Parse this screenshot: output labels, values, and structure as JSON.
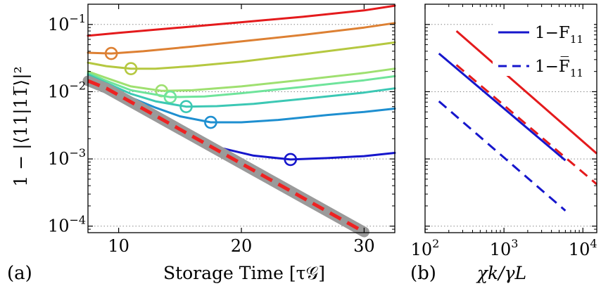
{
  "figure": {
    "panel_a_label": "(a)",
    "panel_b_label": "(b)",
    "y_axis_label": "1 − |⟨11|11̅⟩|²",
    "x_axis_label_a": "Storage Time [τ𝒢]",
    "x_axis_label_b": "χk/γL"
  },
  "chart_data": [
    {
      "type": "line",
      "panel": "(a)",
      "xlabel": "Storage Time [τ𝒢]",
      "ylabel": "1 − |⟨11|11̅⟩|²",
      "yscale": "log",
      "xlim": [
        7.5,
        32.5
      ],
      "ylim": [
        8e-05,
        0.2
      ],
      "xticks": [
        10,
        20,
        30
      ],
      "xtick_labels": [
        "10",
        "20",
        "30"
      ],
      "yticks": [
        0.0001,
        0.001,
        0.01,
        0.1
      ],
      "ytick_labels": [
        "10−4",
        "10−3",
        "10−2",
        "10−1"
      ],
      "grid": "horizontal dotted",
      "series": [
        {
          "color": "#e41a1c",
          "markers": [],
          "x": [
            7.5,
            10,
            15,
            20,
            25,
            30,
            32.5
          ],
          "y": [
            0.068,
            0.075,
            0.09,
            0.108,
            0.13,
            0.162,
            0.19
          ]
        },
        {
          "color": "#dd8033",
          "markers": [
            {
              "x": 9.4,
              "y": 0.037
            }
          ],
          "x": [
            7.5,
            9.4,
            12,
            16,
            20,
            25,
            30,
            32.5
          ],
          "y": [
            0.038,
            0.037,
            0.04,
            0.047,
            0.056,
            0.07,
            0.09,
            0.105
          ]
        },
        {
          "color": "#b5c840",
          "markers": [
            {
              "x": 11.0,
              "y": 0.022
            }
          ],
          "x": [
            7.5,
            9,
            11,
            13,
            16,
            20,
            25,
            30,
            32.5
          ],
          "y": [
            0.027,
            0.024,
            0.022,
            0.022,
            0.024,
            0.028,
            0.036,
            0.047,
            0.054
          ]
        },
        {
          "color": "#9fe070",
          "markers": [
            {
              "x": 13.5,
              "y": 0.0103
            }
          ],
          "x": [
            7.5,
            9,
            11,
            13.5,
            16,
            20,
            25,
            30,
            32.5
          ],
          "y": [
            0.02,
            0.016,
            0.012,
            0.0103,
            0.0105,
            0.012,
            0.015,
            0.019,
            0.022
          ]
        },
        {
          "color": "#6fe49b",
          "markers": [
            {
              "x": 14.2,
              "y": 0.0083
            }
          ],
          "x": [
            7.5,
            9,
            11,
            14.2,
            17,
            20,
            25,
            30,
            32.5
          ],
          "y": [
            0.019,
            0.0145,
            0.0105,
            0.0083,
            0.0085,
            0.0095,
            0.0118,
            0.0148,
            0.017
          ]
        },
        {
          "color": "#3cc8b4",
          "markers": [
            {
              "x": 15.5,
              "y": 0.006
            }
          ],
          "x": [
            7.5,
            9,
            11,
            13,
            15.5,
            18,
            21,
            25,
            30,
            32.5
          ],
          "y": [
            0.018,
            0.0135,
            0.0093,
            0.0072,
            0.006,
            0.0061,
            0.0066,
            0.0078,
            0.0097,
            0.0112
          ]
        },
        {
          "color": "#1e8fd0",
          "markers": [
            {
              "x": 17.5,
              "y": 0.0035
            }
          ],
          "x": [
            7.5,
            9,
            11,
            13,
            15,
            17.5,
            20,
            23,
            27,
            30,
            32.5
          ],
          "y": [
            0.017,
            0.0125,
            0.0082,
            0.0058,
            0.0043,
            0.0035,
            0.0035,
            0.0038,
            0.0045,
            0.005,
            0.0056
          ]
        },
        {
          "color": "#1616cc",
          "markers": [
            {
              "x": 24.0,
              "y": 0.00098
            }
          ],
          "x": [
            7.5,
            9,
            11,
            13,
            15,
            18,
            21,
            24,
            27,
            30,
            32.5
          ],
          "y": [
            0.016,
            0.0115,
            0.0068,
            0.0042,
            0.0026,
            0.0015,
            0.00112,
            0.00098,
            0.00103,
            0.0011,
            0.00123
          ]
        },
        {
          "color": "#9a9a9a",
          "style": "thick",
          "markers": [],
          "x": [
            7.5,
            9,
            30
          ],
          "y": [
            0.0145,
            0.0112,
            8.2e-05
          ]
        },
        {
          "color": "#ee2222",
          "style": "dashed",
          "markers": [],
          "x": [
            7.5,
            9,
            30
          ],
          "y": [
            0.0145,
            0.0112,
            8.2e-05
          ]
        }
      ]
    },
    {
      "type": "line",
      "panel": "(b)",
      "xlabel": "χk/γL",
      "xscale": "log",
      "yscale": "log",
      "xlim": [
        100,
        15000
      ],
      "ylim": [
        8e-05,
        0.2
      ],
      "xticks": [
        100,
        1000,
        10000
      ],
      "xtick_labels": [
        "102",
        "103",
        "104"
      ],
      "grid": "horizontal dotted",
      "legend": "top-right",
      "legend_entries": [
        {
          "label": "1−F11",
          "style": "solid",
          "color": "#1616cc"
        },
        {
          "label": "1−F̅11",
          "style": "dashed",
          "color": "#1616cc"
        }
      ],
      "series": [
        {
          "color": "#e41a1c",
          "style": "solid",
          "x": [
            250,
            15000
          ],
          "y": [
            0.08,
            0.0012
          ]
        },
        {
          "color": "#1616cc",
          "style": "solid",
          "x": [
            150,
            6000
          ],
          "y": [
            0.037,
            0.00095
          ]
        },
        {
          "color": "#e41a1c",
          "style": "dashed",
          "x": [
            250,
            15000
          ],
          "y": [
            0.025,
            0.00042
          ]
        },
        {
          "color": "#1616cc",
          "style": "dashed",
          "x": [
            150,
            6000
          ],
          "y": [
            0.0072,
            0.00017
          ]
        }
      ]
    }
  ]
}
